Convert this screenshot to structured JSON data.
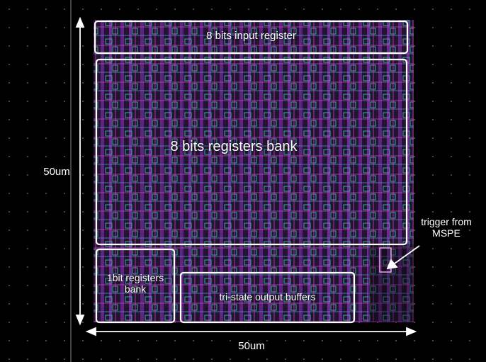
{
  "labels": {
    "input_register": "8 bits input register",
    "registers_bank": "8 bits registers bank",
    "one_bit_bank": "1bit registers bank",
    "output_buffers": "tri-state output buffers",
    "trigger": "trigger from MSPE"
  },
  "dimensions": {
    "height": "50um",
    "width": "50um"
  }
}
